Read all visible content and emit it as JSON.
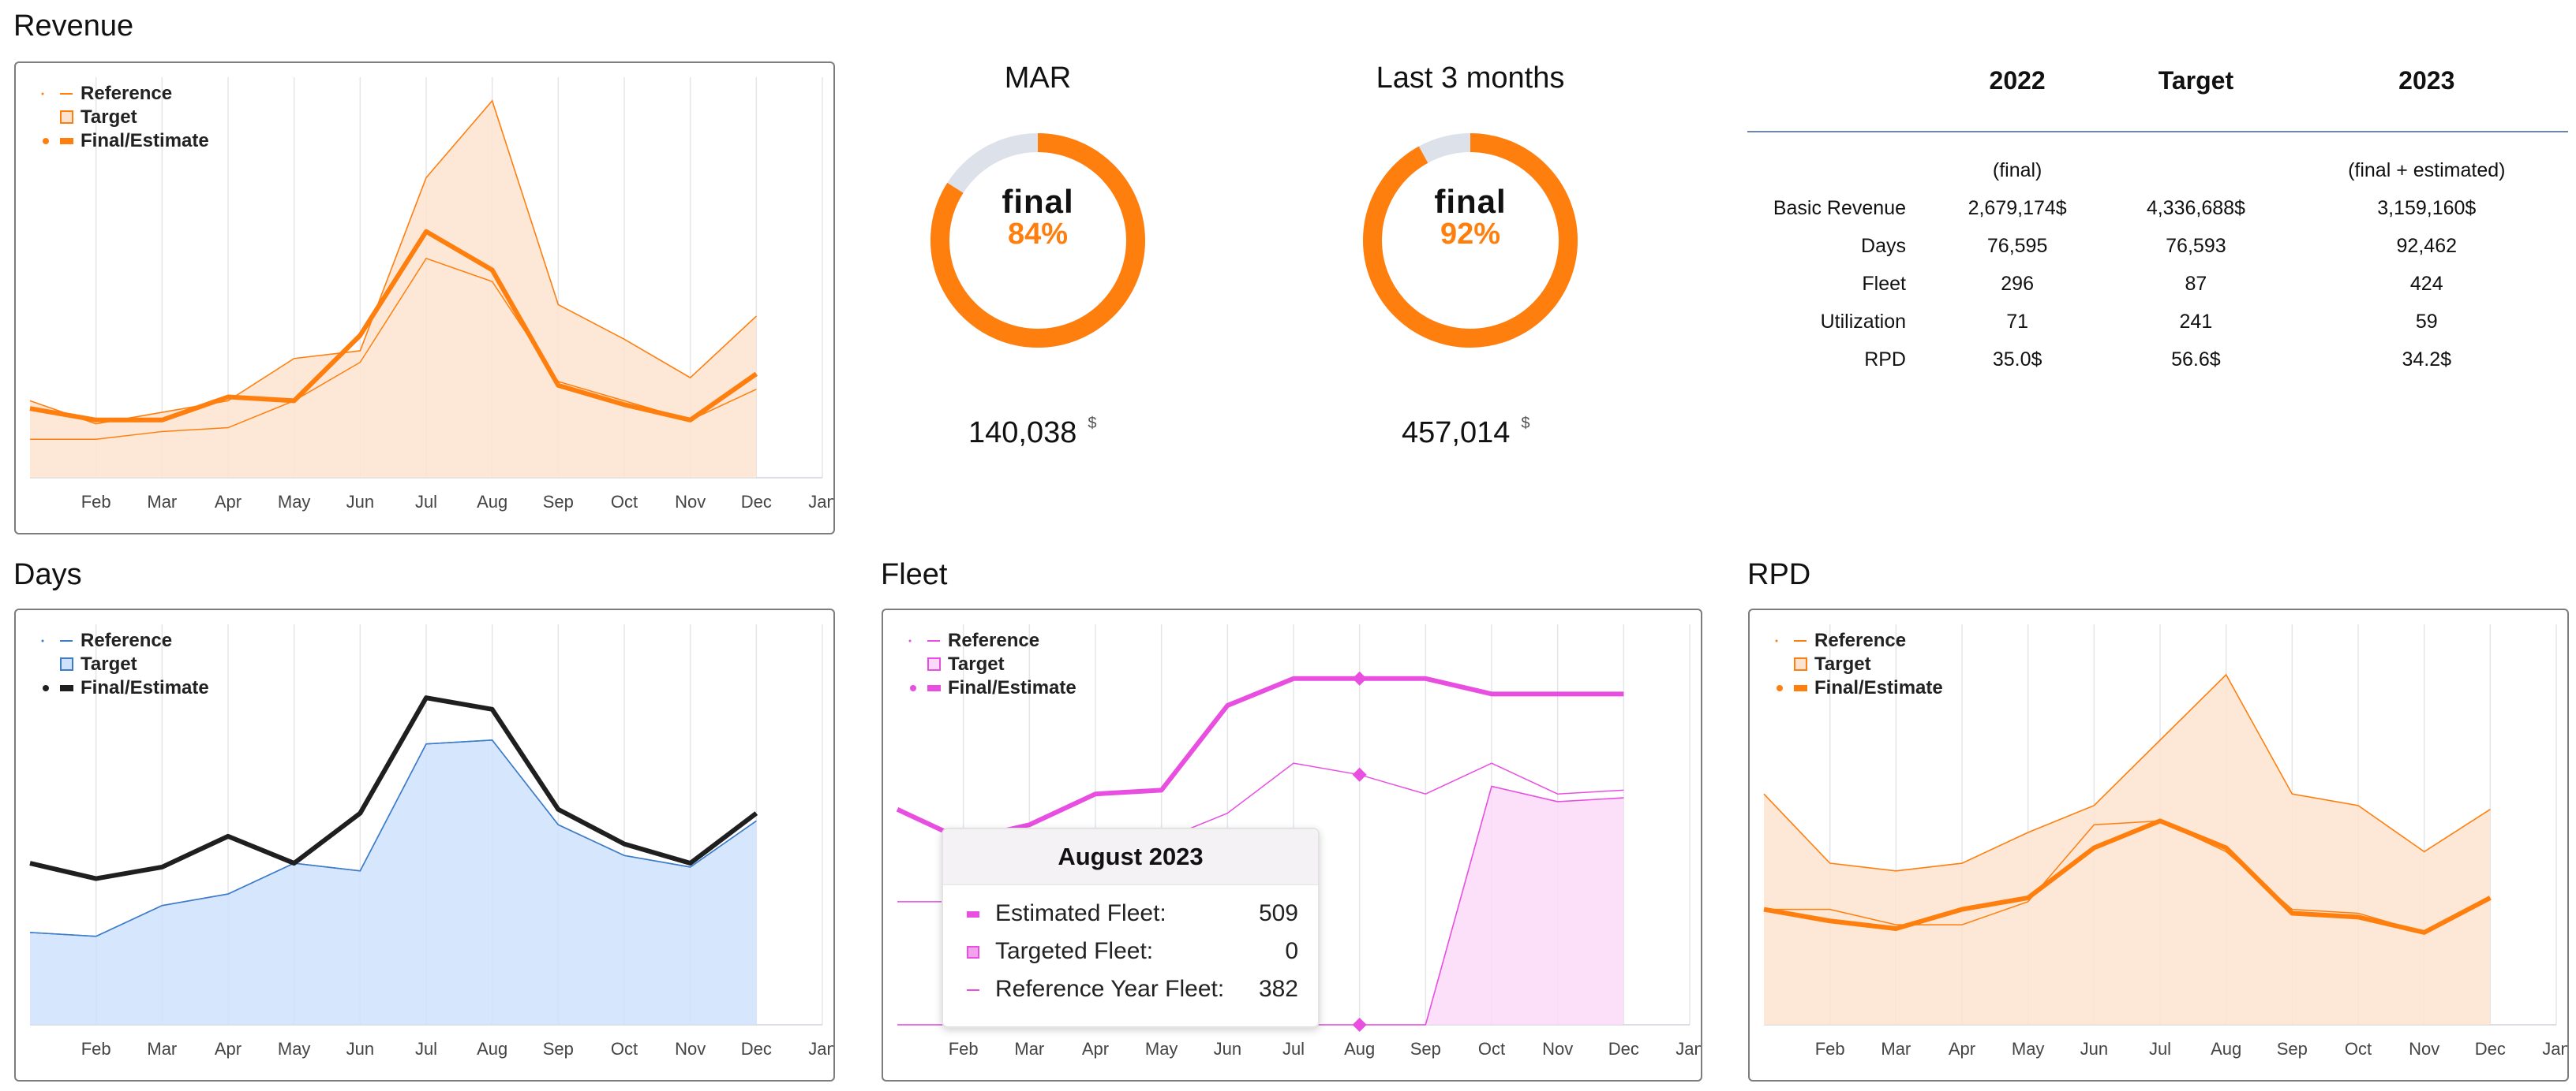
{
  "sections": {
    "revenue": "Revenue",
    "days": "Days",
    "fleet": "Fleet",
    "rpd": "RPD"
  },
  "legend": {
    "reference": "Reference",
    "target": "Target",
    "final": "Final/Estimate"
  },
  "colors": {
    "revenue": "#ff7f0e",
    "revenue_fill": "#fde3cf",
    "days_line": "#1f1f1f",
    "days_fill": "#cfe2fb",
    "days_stroke": "#3d7cc9",
    "fleet": "#e84ee0",
    "fleet_fill": "#fcd9f8",
    "rpd": "#ff7f0e",
    "rpd_fill": "#fde3cf"
  },
  "kpis": [
    {
      "title": "MAR",
      "label": "final",
      "percent": "84%",
      "fraction": 0.84,
      "value": "140,038",
      "unit": "$"
    },
    {
      "title": "Last 3 months",
      "label": "final",
      "percent": "92%",
      "fraction": 0.92,
      "value": "457,014",
      "unit": "$"
    }
  ],
  "summary": {
    "columns": [
      "2022",
      "Target",
      "2023"
    ],
    "subheaders": [
      "(final)",
      "",
      "(final + estimated)"
    ],
    "rows": [
      {
        "label": "Basic Revenue",
        "values": [
          "2,679,174$",
          "4,336,688$",
          "3,159,160$"
        ]
      },
      {
        "label": "Days",
        "values": [
          "76,595",
          "76,593",
          "92,462"
        ]
      },
      {
        "label": "Fleet",
        "values": [
          "296",
          "87",
          "424"
        ]
      },
      {
        "label": "Utilization",
        "values": [
          "71",
          "241",
          "59"
        ]
      },
      {
        "label": "RPD",
        "values": [
          "35.0$",
          "56.6$",
          "34.2$"
        ]
      }
    ]
  },
  "tooltip": {
    "title": "August 2023",
    "rows": [
      {
        "label": "Estimated Fleet:",
        "value": "509"
      },
      {
        "label": "Targeted Fleet:",
        "value": "0"
      },
      {
        "label": "Reference Year Fleet:",
        "value": "382"
      }
    ]
  },
  "chart_data": [
    {
      "id": "revenue",
      "type": "area",
      "title": "Revenue",
      "categories": [
        "Jan",
        "Feb",
        "Mar",
        "Apr",
        "May",
        "Jun",
        "Jul",
        "Aug",
        "Sep",
        "Oct",
        "Nov",
        "Dec"
      ],
      "ylim": [
        0,
        100
      ],
      "series": [
        {
          "name": "Reference",
          "values": [
            10,
            10,
            12,
            13,
            20,
            30,
            57,
            51,
            25,
            20,
            15,
            23
          ]
        },
        {
          "name": "Target",
          "values": [
            20,
            14,
            17,
            20,
            31,
            33,
            78,
            98,
            45,
            36,
            26,
            42
          ]
        },
        {
          "name": "Final/Estimate",
          "values": [
            18,
            15,
            15,
            21,
            20,
            37,
            64,
            54,
            24,
            19,
            15,
            27
          ]
        }
      ],
      "tick_labels": [
        "Feb",
        "Mar",
        "Apr",
        "May",
        "Jun",
        "Jul",
        "Aug",
        "Sep",
        "Oct",
        "Nov",
        "Dec",
        "Jan"
      ]
    },
    {
      "id": "days",
      "type": "area",
      "title": "Days",
      "categories": [
        "Jan",
        "Feb",
        "Mar",
        "Apr",
        "May",
        "Jun",
        "Jul",
        "Aug",
        "Sep",
        "Oct",
        "Nov",
        "Dec"
      ],
      "ylim": [
        0,
        100
      ],
      "series": [
        {
          "name": "Reference",
          "values": [
            24,
            23,
            31,
            34,
            42,
            40,
            73,
            74,
            52,
            44,
            41,
            53
          ]
        },
        {
          "name": "Target",
          "values": [
            24,
            23,
            31,
            34,
            42,
            40,
            73,
            74,
            52,
            44,
            41,
            53
          ]
        },
        {
          "name": "Final/Estimate",
          "values": [
            42,
            38,
            41,
            49,
            42,
            55,
            85,
            82,
            56,
            47,
            42,
            55
          ]
        }
      ],
      "tick_labels": [
        "Feb",
        "Mar",
        "Apr",
        "May",
        "Jun",
        "Jul",
        "Aug",
        "Sep",
        "Oct",
        "Nov",
        "Dec",
        "Jan"
      ]
    },
    {
      "id": "fleet",
      "type": "area",
      "title": "Fleet",
      "categories": [
        "Jan",
        "Feb",
        "Mar",
        "Apr",
        "May",
        "Jun",
        "Jul",
        "Aug",
        "Sep",
        "Oct",
        "Nov",
        "Dec"
      ],
      "ylim": [
        0,
        100
      ],
      "series": [
        {
          "name": "Reference",
          "values": [
            32,
            32,
            40,
            46,
            48,
            55,
            68,
            65,
            60,
            68,
            60,
            61
          ]
        },
        {
          "name": "Target",
          "values": [
            0,
            0,
            0,
            0,
            0,
            0,
            0,
            0,
            0,
            62,
            58,
            59
          ]
        },
        {
          "name": "Final/Estimate",
          "values": [
            56,
            48,
            52,
            60,
            61,
            83,
            90,
            90,
            90,
            86,
            86,
            86
          ]
        }
      ],
      "tick_labels": [
        "Feb",
        "Mar",
        "Apr",
        "May",
        "Jun",
        "Jul",
        "Aug",
        "Sep",
        "Oct",
        "Nov",
        "Dec",
        "Jan"
      ]
    },
    {
      "id": "rpd",
      "type": "area",
      "title": "RPD",
      "categories": [
        "Jan",
        "Feb",
        "Mar",
        "Apr",
        "May",
        "Jun",
        "Jul",
        "Aug",
        "Sep",
        "Oct",
        "Nov",
        "Dec"
      ],
      "ylim": [
        0,
        100
      ],
      "series": [
        {
          "name": "Reference",
          "values": [
            30,
            30,
            26,
            26,
            32,
            52,
            53,
            45,
            30,
            29,
            24,
            33
          ]
        },
        {
          "name": "Target",
          "values": [
            60,
            42,
            40,
            42,
            50,
            57,
            74,
            91,
            60,
            57,
            45,
            56
          ]
        },
        {
          "name": "Final/Estimate",
          "values": [
            30,
            27,
            25,
            30,
            33,
            46,
            53,
            46,
            29,
            28,
            24,
            33
          ]
        }
      ],
      "tick_labels": [
        "Feb",
        "Mar",
        "Apr",
        "May",
        "Jun",
        "Jul",
        "Aug",
        "Sep",
        "Oct",
        "Nov",
        "Dec",
        "Jan"
      ]
    }
  ]
}
